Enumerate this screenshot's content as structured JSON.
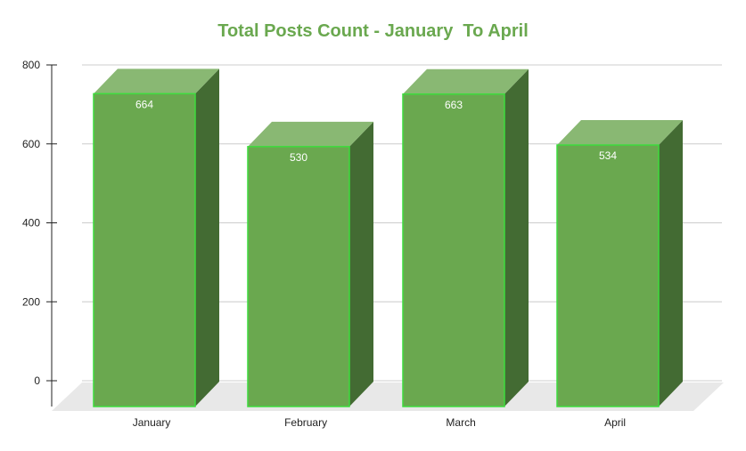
{
  "colors": {
    "title": "#6aa84f",
    "bar_front": "#6aa84f",
    "bar_top": "#89b873",
    "bar_side": "#436b33",
    "bar_edge": "#3ddc3d",
    "floor": "#e8e8e8",
    "grid": "#cccccc",
    "axis": "#222222"
  },
  "chart_data": {
    "type": "bar",
    "style": "3d",
    "title": "Total Posts Count - January  To April",
    "xlabel": "",
    "ylabel": "",
    "categories": [
      "January",
      "February",
      "March",
      "April"
    ],
    "values": [
      664,
      530,
      663,
      534
    ],
    "data_labels": [
      "664",
      "530",
      "663",
      "534"
    ],
    "ylim": [
      0,
      800
    ],
    "yticks": [
      0,
      200,
      400,
      600,
      800
    ],
    "ytick_labels": [
      "0",
      "200",
      "400",
      "600",
      "800"
    ],
    "grid": true,
    "legend": "none"
  }
}
